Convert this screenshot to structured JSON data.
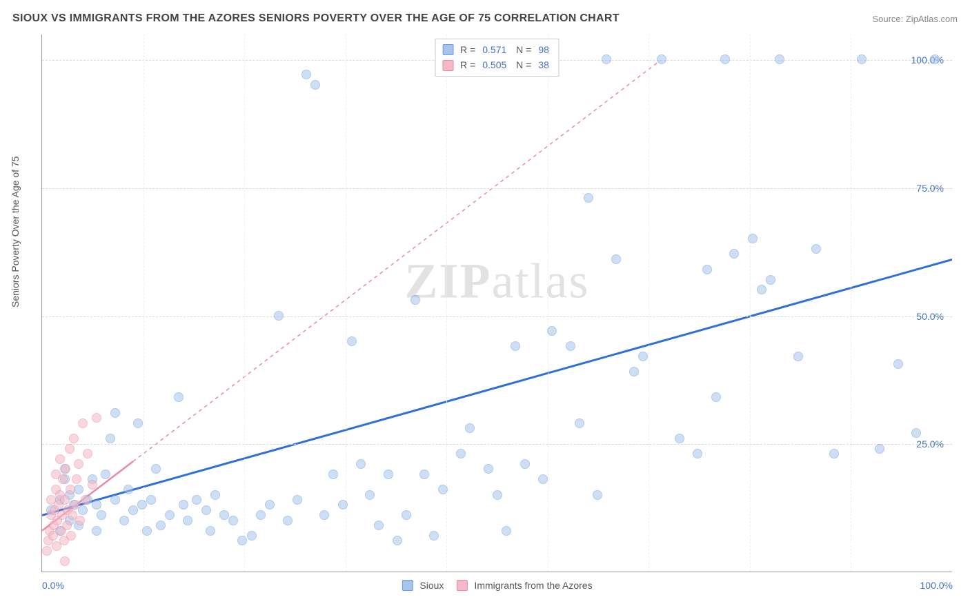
{
  "header": {
    "title": "SIOUX VS IMMIGRANTS FROM THE AZORES SENIORS POVERTY OVER THE AGE OF 75 CORRELATION CHART",
    "source": "Source: ZipAtlas.com"
  },
  "watermark": "ZIPatlas",
  "chart": {
    "type": "scatter",
    "y_axis_label": "Seniors Poverty Over the Age of 75",
    "xlim": [
      0,
      100
    ],
    "ylim": [
      0,
      105
    ],
    "x_ticks": [
      0,
      100
    ],
    "x_tick_labels": [
      "0.0%",
      "100.0%"
    ],
    "x_minor_ticks": [
      11.1,
      22.2,
      33.3,
      44.4,
      55.5,
      66.6,
      77.7,
      88.8
    ],
    "y_ticks": [
      25,
      50,
      75,
      100
    ],
    "y_tick_labels": [
      "25.0%",
      "50.0%",
      "75.0%",
      "100.0%"
    ],
    "grid_color": "#d8d8d8",
    "axis_color": "#999999",
    "background_color": "#ffffff",
    "series": [
      {
        "name": "Sioux",
        "fill_color": "#a7c5ec",
        "stroke_color": "#6d9de0",
        "line_color": "#2e6fd8",
        "line_dash": "none",
        "R": "0.571",
        "N": "98",
        "trend": {
          "x1": 0,
          "y1": 11,
          "x2": 100,
          "y2": 61
        },
        "points": [
          [
            1,
            12
          ],
          [
            2,
            14
          ],
          [
            2.5,
            18
          ],
          [
            2,
            8
          ],
          [
            2.5,
            20
          ],
          [
            3,
            10
          ],
          [
            3,
            15
          ],
          [
            3.5,
            13
          ],
          [
            4,
            16
          ],
          [
            4,
            9
          ],
          [
            4.5,
            12
          ],
          [
            5,
            14
          ],
          [
            5.5,
            18
          ],
          [
            6,
            8
          ],
          [
            6,
            13
          ],
          [
            6.5,
            11
          ],
          [
            7,
            19
          ],
          [
            7.5,
            26
          ],
          [
            8,
            31
          ],
          [
            8,
            14
          ],
          [
            9,
            10
          ],
          [
            9.5,
            16
          ],
          [
            10,
            12
          ],
          [
            10.5,
            29
          ],
          [
            11,
            13
          ],
          [
            11.5,
            8
          ],
          [
            12,
            14
          ],
          [
            12.5,
            20
          ],
          [
            13,
            9
          ],
          [
            14,
            11
          ],
          [
            15,
            34
          ],
          [
            15.5,
            13
          ],
          [
            16,
            10
          ],
          [
            17,
            14
          ],
          [
            18,
            12
          ],
          [
            18.5,
            8
          ],
          [
            19,
            15
          ],
          [
            20,
            11
          ],
          [
            21,
            10
          ],
          [
            22,
            6
          ],
          [
            23,
            7
          ],
          [
            24,
            11
          ],
          [
            25,
            13
          ],
          [
            26,
            50
          ],
          [
            27,
            10
          ],
          [
            28,
            14
          ],
          [
            29,
            97
          ],
          [
            30,
            95
          ],
          [
            31,
            11
          ],
          [
            32,
            19
          ],
          [
            33,
            13
          ],
          [
            34,
            45
          ],
          [
            35,
            21
          ],
          [
            36,
            15
          ],
          [
            37,
            9
          ],
          [
            38,
            19
          ],
          [
            39,
            6
          ],
          [
            40,
            11
          ],
          [
            41,
            53
          ],
          [
            42,
            19
          ],
          [
            43,
            7
          ],
          [
            44,
            16
          ],
          [
            46,
            23
          ],
          [
            47,
            28
          ],
          [
            49,
            20
          ],
          [
            50,
            15
          ],
          [
            51,
            8
          ],
          [
            52,
            44
          ],
          [
            53,
            21
          ],
          [
            55,
            18
          ],
          [
            56,
            47
          ],
          [
            58,
            44
          ],
          [
            59,
            29
          ],
          [
            60,
            73
          ],
          [
            61,
            15
          ],
          [
            62,
            100
          ],
          [
            63,
            61
          ],
          [
            65,
            39
          ],
          [
            66,
            42
          ],
          [
            68,
            100
          ],
          [
            70,
            26
          ],
          [
            72,
            23
          ],
          [
            73,
            59
          ],
          [
            74,
            34
          ],
          [
            75,
            100
          ],
          [
            76,
            62
          ],
          [
            78,
            65
          ],
          [
            79,
            55
          ],
          [
            80,
            57
          ],
          [
            81,
            100
          ],
          [
            83,
            42
          ],
          [
            85,
            63
          ],
          [
            87,
            23
          ],
          [
            90,
            100
          ],
          [
            92,
            24
          ],
          [
            94,
            40.5
          ],
          [
            96,
            27
          ],
          [
            98,
            100
          ]
        ]
      },
      {
        "name": "Immigrants from the Azores",
        "fill_color": "#f4b8c6",
        "stroke_color": "#e88aa3",
        "line_color": "#e88aa3",
        "line_dash": "5,5",
        "R": "0.505",
        "N": "38",
        "trend": {
          "x1": 0,
          "y1": 8,
          "x2": 68,
          "y2": 100
        },
        "trend_solid_end_x": 10,
        "points": [
          [
            0.5,
            4
          ],
          [
            0.7,
            6
          ],
          [
            0.8,
            8
          ],
          [
            1,
            11
          ],
          [
            1,
            14
          ],
          [
            1.2,
            7
          ],
          [
            1.3,
            9
          ],
          [
            1.4,
            12
          ],
          [
            1.5,
            16
          ],
          [
            1.5,
            19
          ],
          [
            1.6,
            5
          ],
          [
            1.7,
            10
          ],
          [
            1.8,
            13
          ],
          [
            2,
            15
          ],
          [
            2,
            22
          ],
          [
            2.1,
            8
          ],
          [
            2.2,
            11
          ],
          [
            2.3,
            18
          ],
          [
            2.4,
            6
          ],
          [
            2.5,
            14
          ],
          [
            2.6,
            20
          ],
          [
            2.7,
            9
          ],
          [
            2.8,
            12
          ],
          [
            3,
            24
          ],
          [
            3.1,
            16
          ],
          [
            3.2,
            7
          ],
          [
            3.3,
            11
          ],
          [
            3.5,
            26
          ],
          [
            3.6,
            13
          ],
          [
            3.8,
            18
          ],
          [
            4,
            21
          ],
          [
            4.2,
            10
          ],
          [
            4.5,
            29
          ],
          [
            4.8,
            14
          ],
          [
            5,
            23
          ],
          [
            5.5,
            17
          ],
          [
            6,
            30
          ],
          [
            2.5,
            2
          ]
        ]
      }
    ],
    "legend_bottom": [
      {
        "label": "Sioux",
        "fill": "#a7c5ec",
        "stroke": "#6d9de0"
      },
      {
        "label": "Immigrants from the Azores",
        "fill": "#f4b8c6",
        "stroke": "#e88aa3"
      }
    ]
  }
}
